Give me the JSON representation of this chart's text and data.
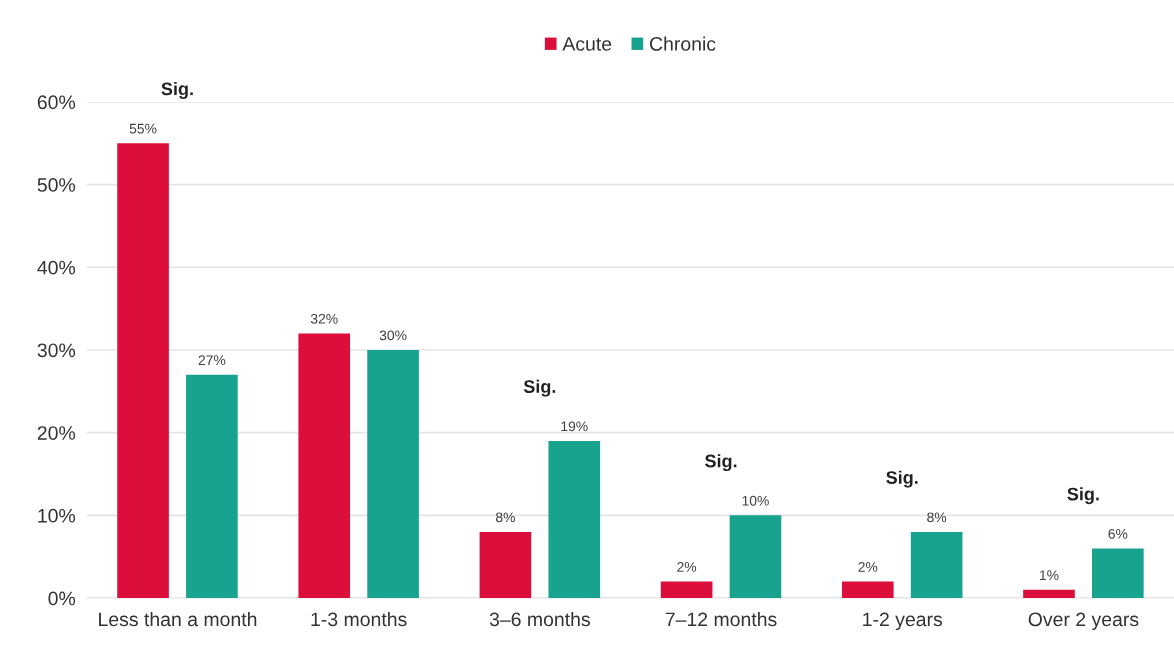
{
  "chart_data": {
    "type": "bar",
    "categories": [
      "Less than a month",
      "1-3 months",
      "3–6 months",
      "7–12 months",
      "1-2 years",
      "Over 2 years"
    ],
    "series": [
      {
        "name": "Acute",
        "color": "#dc0f3c",
        "values": [
          55,
          32,
          8,
          2,
          2,
          1
        ],
        "value_labels": [
          "55%",
          "32%",
          "8%",
          "2%",
          "2%",
          "1%"
        ]
      },
      {
        "name": "Chronic",
        "color": "#18a38f",
        "values": [
          27,
          30,
          19,
          10,
          8,
          6
        ],
        "value_labels": [
          "27%",
          "30%",
          "19%",
          "10%",
          "8%",
          "6%"
        ]
      }
    ],
    "ylim": [
      0,
      60
    ],
    "yticks": [
      {
        "value": 0,
        "label": "0%"
      },
      {
        "value": 10,
        "label": "10%"
      },
      {
        "value": 20,
        "label": "20%"
      },
      {
        "value": 30,
        "label": "30%"
      },
      {
        "value": 40,
        "label": "40%"
      },
      {
        "value": 50,
        "label": "50%"
      },
      {
        "value": 60,
        "label": "60%"
      }
    ],
    "grid": "y",
    "legend": "top",
    "annotations": [
      "Sig.",
      "Sig.",
      "Sig.",
      "Sig.",
      "Sig."
    ]
  }
}
